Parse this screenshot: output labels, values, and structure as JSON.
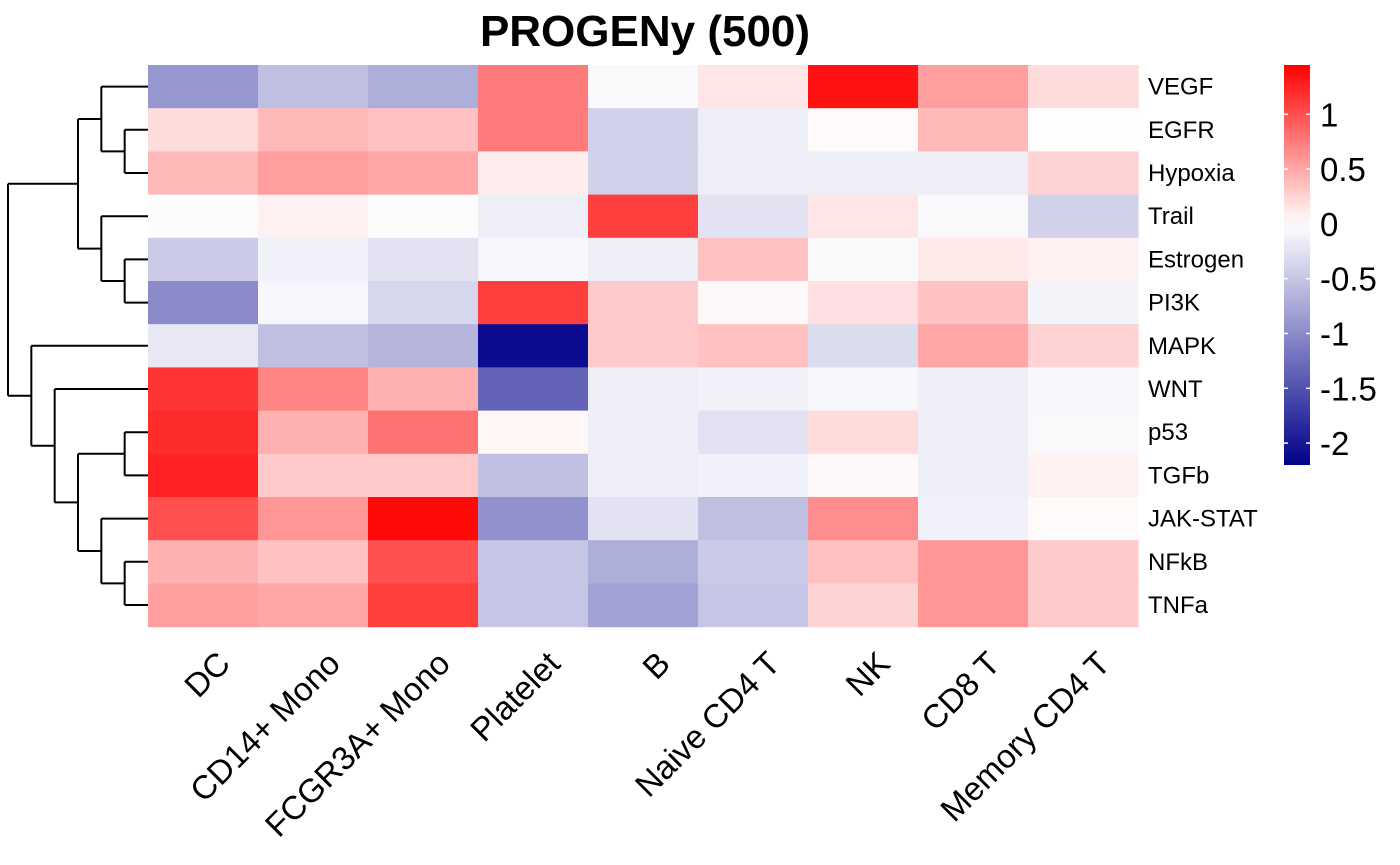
{
  "chart_data": {
    "type": "heatmap",
    "title": "PROGENy (500)",
    "columns": [
      "DC",
      "CD14+ Mono",
      "FCGR3A+ Mono",
      "Platelet",
      "B",
      "Naive CD4 T",
      "NK",
      "CD8 T",
      "Memory CD4 T"
    ],
    "rows": [
      "VEGF",
      "EGFR",
      "Hypoxia",
      "Trail",
      "Estrogen",
      "PI3K",
      "MAPK",
      "WNT",
      "p53",
      "TGFb",
      "JAK-STAT",
      "NFkB",
      "TNFa"
    ],
    "values": [
      [
        -0.9,
        -0.55,
        -0.7,
        0.75,
        -0.05,
        0.15,
        1.35,
        0.55,
        0.2
      ],
      [
        0.2,
        0.4,
        0.35,
        0.75,
        -0.4,
        -0.15,
        0.02,
        0.4,
        0.01
      ],
      [
        0.4,
        0.55,
        0.5,
        0.1,
        -0.4,
        -0.15,
        -0.15,
        -0.15,
        0.25
      ],
      [
        -0.03,
        0.08,
        -0.03,
        -0.15,
        1.1,
        -0.25,
        0.15,
        -0.05,
        -0.4
      ],
      [
        -0.45,
        -0.12,
        -0.25,
        -0.08,
        -0.15,
        0.35,
        -0.05,
        0.12,
        0.08
      ],
      [
        -1.0,
        -0.08,
        -0.35,
        1.1,
        0.3,
        0.04,
        0.18,
        0.35,
        -0.1
      ],
      [
        -0.2,
        -0.55,
        -0.65,
        -2.1,
        0.3,
        0.35,
        -0.3,
        0.5,
        0.25
      ],
      [
        1.15,
        0.7,
        0.45,
        -1.35,
        -0.15,
        -0.12,
        -0.08,
        -0.15,
        -0.08
      ],
      [
        1.2,
        0.45,
        0.8,
        0.05,
        -0.15,
        -0.25,
        0.2,
        -0.15,
        -0.05
      ],
      [
        1.25,
        0.3,
        0.3,
        -0.55,
        -0.15,
        -0.12,
        0.04,
        -0.15,
        0.08
      ],
      [
        1.0,
        0.6,
        1.4,
        -0.95,
        -0.25,
        -0.55,
        0.65,
        -0.12,
        0.03
      ],
      [
        0.45,
        0.35,
        1.0,
        -0.5,
        -0.7,
        -0.45,
        0.35,
        0.6,
        0.3
      ],
      [
        0.55,
        0.5,
        1.1,
        -0.5,
        -0.8,
        -0.5,
        0.25,
        0.6,
        0.3
      ]
    ],
    "dendrogram_tree": [
      [
        [
          0,
          [
            1,
            2
          ]
        ],
        [
          3,
          [
            4,
            5
          ]
        ]
      ],
      [
        6,
        [
          7,
          [
            [
              8,
              9
            ],
            [
              10,
              [
                11,
                12
              ]
            ]
          ]
        ]
      ]
    ],
    "color_scale": {
      "min": -2.2,
      "max": 1.45,
      "low_color": "#00008b",
      "mid_color": "#ffffff",
      "high_color": "#ff0000",
      "breaks": [
        1,
        0.5,
        0,
        -0.5,
        -1,
        -1.5,
        -2
      ],
      "break_labels": [
        "1",
        "0.5",
        "0",
        "-0.5",
        "-1",
        "-1.5",
        "-2"
      ]
    },
    "legend": "right"
  }
}
